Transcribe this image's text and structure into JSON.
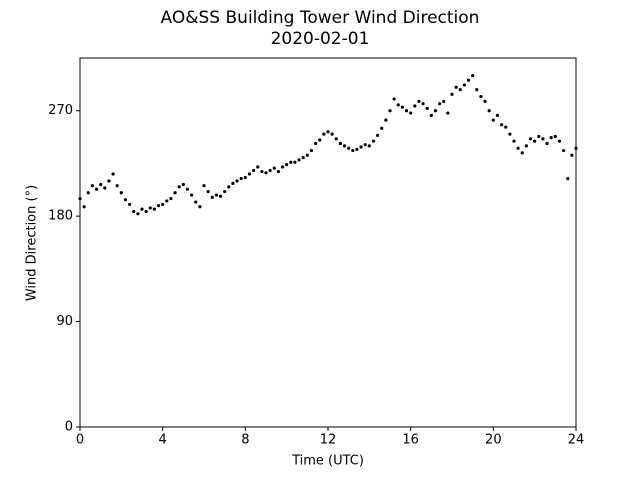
{
  "chart_data": {
    "type": "scatter",
    "title": "AO&SS Building Tower Wind Direction",
    "subtitle": "2020-02-01",
    "x_label": "Time (UTC)",
    "y_label": "Wind Direction (°)",
    "color": "#000000",
    "xlim": [
      0,
      24
    ],
    "xticks": [
      0,
      4,
      8,
      12,
      16,
      20,
      24
    ],
    "ylim": [
      0,
      315
    ],
    "yticks": [
      0,
      90,
      180,
      270
    ],
    "x": [
      0,
      0.2,
      0.4,
      0.6,
      0.8,
      1,
      1.2,
      1.4,
      1.6,
      1.8,
      2,
      2.2,
      2.4,
      2.6,
      2.8,
      3,
      3.2,
      3.4,
      3.6,
      3.8,
      4,
      4.2,
      4.4,
      4.6,
      4.8,
      5,
      5.2,
      5.4,
      5.6,
      5.8,
      6,
      6.2,
      6.4,
      6.6,
      6.8,
      7,
      7.2,
      7.4,
      7.6,
      7.8,
      8,
      8.2,
      8.4,
      8.6,
      8.8,
      9,
      9.2,
      9.4,
      9.6,
      9.8,
      10,
      10.2,
      10.4,
      10.6,
      10.8,
      11,
      11.2,
      11.4,
      11.6,
      11.8,
      12,
      12.2,
      12.4,
      12.6,
      12.8,
      13,
      13.2,
      13.4,
      13.6,
      13.8,
      14,
      14.2,
      14.4,
      14.6,
      14.8,
      15,
      15.2,
      15.4,
      15.6,
      15.8,
      16,
      16.2,
      16.4,
      16.6,
      16.8,
      17,
      17.2,
      17.4,
      17.6,
      17.8,
      18,
      18.2,
      18.4,
      18.6,
      18.8,
      19,
      19.2,
      19.4,
      19.6,
      19.8,
      20,
      20.2,
      20.4,
      20.6,
      20.8,
      21,
      21.2,
      21.4,
      21.6,
      21.8,
      22,
      22.2,
      22.4,
      22.6,
      22.8,
      23,
      23.2,
      23.4,
      23.6,
      23.8,
      24
    ],
    "values": [
      195,
      188,
      200,
      206,
      203,
      207,
      204,
      210,
      216,
      206,
      200,
      194,
      190,
      184,
      182,
      186,
      184,
      187,
      186,
      189,
      190,
      193,
      195,
      200,
      205,
      207,
      203,
      198,
      192,
      188,
      206,
      201,
      196,
      198,
      197,
      201,
      205,
      208,
      210,
      212,
      213,
      216,
      219,
      222,
      218,
      217,
      219,
      221,
      218,
      222,
      224,
      226,
      226,
      228,
      230,
      232,
      236,
      242,
      245,
      250,
      252,
      250,
      246,
      242,
      240,
      238,
      236,
      237,
      239,
      241,
      240,
      244,
      249,
      255,
      262,
      270,
      280,
      275,
      273,
      270,
      268,
      274,
      278,
      276,
      272,
      266,
      270,
      276,
      278,
      268,
      284,
      290,
      288,
      292,
      296,
      300,
      288,
      282,
      278,
      270,
      262,
      266,
      258,
      256,
      250,
      244,
      238,
      234,
      240,
      246,
      244,
      248,
      246,
      242,
      247,
      248,
      244,
      236,
      212,
      232,
      238
    ]
  }
}
